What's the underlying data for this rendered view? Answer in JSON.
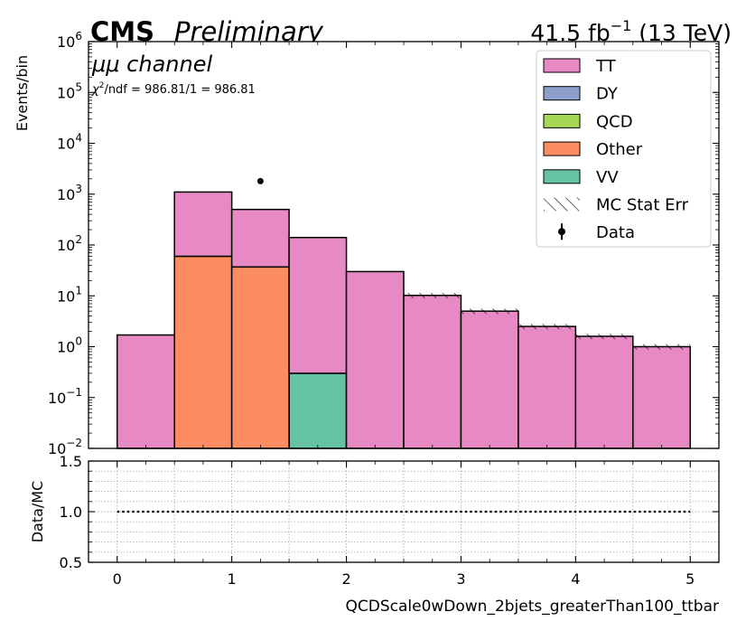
{
  "header": {
    "experiment": "CMS",
    "status": "Preliminary",
    "lumi": "41.5 fb",
    "lumi_exp": "−1",
    "energy": " (13 TeV)"
  },
  "annotations": {
    "channel": "μμ channel",
    "chi2_symbol": "χ",
    "chi2_exp": "2",
    "chi2_text": "/ndf = 986.81/1 = 986.81"
  },
  "colors": {
    "TT": "#e78ac3",
    "DY": "#8da0cb",
    "QCD": "#a6d854",
    "Other": "#fc8d62",
    "VV": "#66c2a5"
  },
  "chart_data": [
    {
      "type": "bar",
      "stacked": true,
      "yscale": "log",
      "ylabel": "Events/bin",
      "xlim": [
        -0.25,
        5.25
      ],
      "ylim": [
        0.01,
        1000000
      ],
      "bin_edges": [
        0,
        0.5,
        1,
        1.5,
        2,
        2.5,
        3,
        3.5,
        4,
        4.5,
        5
      ],
      "yticks": [
        {
          "base": "10",
          "exp": "−2",
          "value": 0.01
        },
        {
          "base": "10",
          "exp": "−1",
          "value": 0.1
        },
        {
          "base": "10",
          "exp": "0",
          "value": 1
        },
        {
          "base": "10",
          "exp": "1",
          "value": 10
        },
        {
          "base": "10",
          "exp": "2",
          "value": 100
        },
        {
          "base": "10",
          "exp": "3",
          "value": 1000
        },
        {
          "base": "10",
          "exp": "4",
          "value": 10000
        },
        {
          "base": "10",
          "exp": "5",
          "value": 100000
        },
        {
          "base": "10",
          "exp": "6",
          "value": 1000000
        }
      ],
      "series": [
        {
          "name": "VV",
          "values": [
            0,
            0,
            0,
            0.3,
            0,
            0,
            0,
            0,
            0,
            0
          ]
        },
        {
          "name": "Other",
          "values": [
            0,
            60,
            37,
            0,
            0,
            0,
            0,
            0,
            0,
            0
          ]
        },
        {
          "name": "QCD",
          "values": [
            0,
            0,
            0,
            0,
            0,
            0,
            0,
            0,
            0,
            0
          ]
        },
        {
          "name": "DY",
          "values": [
            0,
            0,
            0,
            0,
            0,
            0,
            0,
            0,
            0,
            0
          ]
        },
        {
          "name": "TT",
          "values": [
            1.7,
            1040,
            463,
            140,
            30,
            10.2,
            5.0,
            2.5,
            1.6,
            1.0
          ]
        }
      ],
      "mc_stat_err_bins": [
        5,
        6,
        7,
        8,
        9
      ],
      "data_points": [
        {
          "x": 1.25,
          "y": 1800
        }
      ],
      "legend": {
        "placement": "top-right",
        "entries": [
          "TT",
          "DY",
          "QCD",
          "Other",
          "VV",
          "MC Stat Err",
          "Data"
        ]
      }
    },
    {
      "type": "line",
      "ylabel": "Data/MC",
      "xlabel": "QCDScale0wDown_2bjets_greaterThan100_ttbar",
      "xlim": [
        -0.25,
        5.25
      ],
      "ylim": [
        0.5,
        1.5
      ],
      "yticks": [
        "0.5",
        "1.0",
        "1.5"
      ],
      "xticks": [
        "0",
        "1",
        "2",
        "3",
        "4",
        "5"
      ],
      "reference_line": {
        "x": [
          0,
          5
        ],
        "y": 1.0
      },
      "grid": true
    }
  ]
}
